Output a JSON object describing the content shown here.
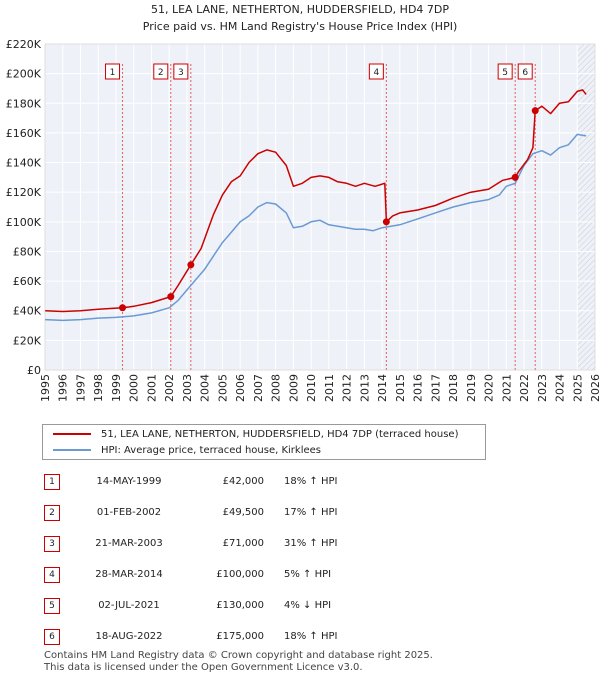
{
  "chart_data": {
    "type": "line",
    "title": "51, LEA LANE, NETHERTON, HUDDERSFIELD, HD4 7DP",
    "subtitle": "Price paid vs. HM Land Registry's House Price Index (HPI)",
    "x_range": [
      1995,
      2026
    ],
    "y_range": [
      0,
      220000
    ],
    "y_ticks": [
      {
        "value": 0,
        "label": "£0"
      },
      {
        "value": 20000,
        "label": "£20K"
      },
      {
        "value": 40000,
        "label": "£40K"
      },
      {
        "value": 60000,
        "label": "£60K"
      },
      {
        "value": 80000,
        "label": "£80K"
      },
      {
        "value": 100000,
        "label": "£100K"
      },
      {
        "value": 120000,
        "label": "£120K"
      },
      {
        "value": 140000,
        "label": "£140K"
      },
      {
        "value": 160000,
        "label": "£160K"
      },
      {
        "value": 180000,
        "label": "£180K"
      },
      {
        "value": 200000,
        "label": "£200K"
      },
      {
        "value": 220000,
        "label": "£220K"
      }
    ],
    "x_ticks": [
      "1995",
      "1996",
      "1997",
      "1998",
      "1999",
      "2000",
      "2001",
      "2002",
      "2003",
      "2004",
      "2005",
      "2006",
      "2007",
      "2008",
      "2009",
      "2010",
      "2011",
      "2012",
      "2013",
      "2014",
      "2015",
      "2016",
      "2017",
      "2018",
      "2019",
      "2020",
      "2021",
      "2022",
      "2023",
      "2024",
      "2025",
      "2026"
    ],
    "series": [
      {
        "name": "51, LEA LANE, NETHERTON, HUDDERSFIELD, HD4 7DP (terraced house)",
        "color": "#cc0000",
        "points": [
          [
            1995,
            40000
          ],
          [
            1996,
            39500
          ],
          [
            1997,
            40000
          ],
          [
            1998,
            41000
          ],
          [
            1999.37,
            42000
          ],
          [
            2000,
            43000
          ],
          [
            2001,
            45500
          ],
          [
            2002.09,
            49500
          ],
          [
            2002.5,
            57000
          ],
          [
            2003.22,
            71000
          ],
          [
            2003.8,
            82000
          ],
          [
            2004.5,
            105000
          ],
          [
            2005,
            118000
          ],
          [
            2005.5,
            127000
          ],
          [
            2006,
            131000
          ],
          [
            2006.5,
            140000
          ],
          [
            2007,
            146000
          ],
          [
            2007.5,
            148500
          ],
          [
            2008,
            147000
          ],
          [
            2008.6,
            138000
          ],
          [
            2009,
            124000
          ],
          [
            2009.5,
            126000
          ],
          [
            2010,
            130000
          ],
          [
            2010.5,
            131000
          ],
          [
            2011,
            130000
          ],
          [
            2011.5,
            127000
          ],
          [
            2012,
            126000
          ],
          [
            2012.5,
            124000
          ],
          [
            2013,
            126000
          ],
          [
            2013.6,
            124000
          ],
          [
            2014.15,
            126000
          ],
          [
            2014.24,
            100000
          ],
          [
            2014.6,
            104000
          ],
          [
            2015,
            106000
          ],
          [
            2016,
            108000
          ],
          [
            2017,
            111000
          ],
          [
            2018,
            116000
          ],
          [
            2019,
            120000
          ],
          [
            2020,
            122000
          ],
          [
            2020.8,
            128000
          ],
          [
            2021.5,
            130000
          ],
          [
            2021.7,
            134000
          ],
          [
            2022.2,
            142000
          ],
          [
            2022.5,
            150000
          ],
          [
            2022.63,
            175000
          ],
          [
            2023,
            178000
          ],
          [
            2023.5,
            173000
          ],
          [
            2024,
            180000
          ],
          [
            2024.5,
            181000
          ],
          [
            2025,
            188000
          ],
          [
            2025.3,
            189000
          ],
          [
            2025.5,
            186000
          ]
        ]
      },
      {
        "name": "HPI: Average price, terraced house, Kirklees",
        "color": "#6a9ad4",
        "points": [
          [
            1995,
            34000
          ],
          [
            1996,
            33500
          ],
          [
            1997,
            34000
          ],
          [
            1998,
            35000
          ],
          [
            1999,
            35500
          ],
          [
            2000,
            36500
          ],
          [
            2001,
            38500
          ],
          [
            2002,
            42000
          ],
          [
            2002.5,
            47000
          ],
          [
            2003,
            54000
          ],
          [
            2003.5,
            61000
          ],
          [
            2004,
            68000
          ],
          [
            2004.5,
            77000
          ],
          [
            2005,
            86000
          ],
          [
            2005.5,
            93000
          ],
          [
            2006,
            100000
          ],
          [
            2006.5,
            104000
          ],
          [
            2007,
            110000
          ],
          [
            2007.5,
            113000
          ],
          [
            2008,
            112000
          ],
          [
            2008.6,
            106000
          ],
          [
            2009,
            96000
          ],
          [
            2009.5,
            97000
          ],
          [
            2010,
            100000
          ],
          [
            2010.5,
            101000
          ],
          [
            2011,
            98000
          ],
          [
            2012,
            96000
          ],
          [
            2012.5,
            95000
          ],
          [
            2013,
            95000
          ],
          [
            2013.5,
            94000
          ],
          [
            2014,
            96000
          ],
          [
            2014.5,
            97000
          ],
          [
            2015,
            98000
          ],
          [
            2016,
            102000
          ],
          [
            2017,
            106000
          ],
          [
            2018,
            110000
          ],
          [
            2019,
            113000
          ],
          [
            2020,
            115000
          ],
          [
            2020.6,
            118000
          ],
          [
            2021,
            124000
          ],
          [
            2021.5,
            126000
          ],
          [
            2022,
            138000
          ],
          [
            2022.5,
            146000
          ],
          [
            2023,
            148000
          ],
          [
            2023.5,
            145000
          ],
          [
            2024,
            150000
          ],
          [
            2024.5,
            152000
          ],
          [
            2025,
            159000
          ],
          [
            2025.5,
            158000
          ]
        ]
      }
    ],
    "sales_markers": [
      {
        "label": "1",
        "x": 1999.37,
        "y": 42000
      },
      {
        "label": "2",
        "x": 2002.09,
        "y": 49500
      },
      {
        "label": "3",
        "x": 2003.22,
        "y": 71000
      },
      {
        "label": "4",
        "x": 2014.24,
        "y": 100000
      },
      {
        "label": "5",
        "x": 2021.5,
        "y": 130000
      },
      {
        "label": "6",
        "x": 2022.63,
        "y": 175000
      }
    ],
    "shaded_from": 2025.0
  },
  "legend": {
    "property_label": "51, LEA LANE, NETHERTON, HUDDERSFIELD, HD4 7DP (terraced house)",
    "hpi_label": "HPI: Average price, terraced house, Kirklees"
  },
  "sales": [
    {
      "num": "1",
      "date": "14-MAY-1999",
      "price": "£42,000",
      "hpi": "18% ↑ HPI"
    },
    {
      "num": "2",
      "date": "01-FEB-2002",
      "price": "£49,500",
      "hpi": "17% ↑ HPI"
    },
    {
      "num": "3",
      "date": "21-MAR-2003",
      "price": "£71,000",
      "hpi": "31% ↑ HPI"
    },
    {
      "num": "4",
      "date": "28-MAR-2014",
      "price": "£100,000",
      "hpi": "5% ↑ HPI"
    },
    {
      "num": "5",
      "date": "02-JUL-2021",
      "price": "£130,000",
      "hpi": "4% ↓ HPI"
    },
    {
      "num": "6",
      "date": "18-AUG-2022",
      "price": "£175,000",
      "hpi": "18% ↑ HPI"
    }
  ],
  "footer": {
    "line1": "Contains HM Land Registry data © Crown copyright and database right 2025.",
    "line2": "This data is licensed under the Open Government Licence v3.0."
  }
}
